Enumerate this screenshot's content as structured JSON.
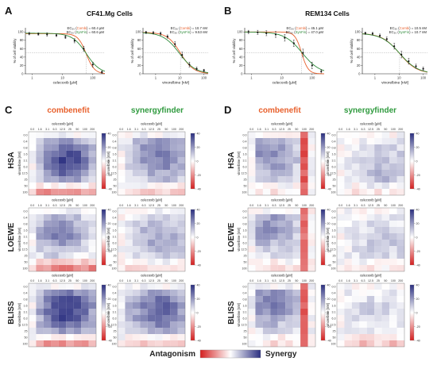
{
  "panels": {
    "A": {
      "letter": "A",
      "title": "CF41.Mg Cells"
    },
    "B": {
      "letter": "B",
      "title": "REM134 Cells"
    },
    "C": {
      "letter": "C"
    },
    "D": {
      "letter": "D"
    }
  },
  "column_titles": {
    "combenefit": "combenefit",
    "synergyfinder": "synergyfinder"
  },
  "row_titles": [
    "HSA",
    "LOEWE",
    "BLISS"
  ],
  "legend": {
    "antagonism": "Antagonism",
    "synergy": "Synergy"
  },
  "colors": {
    "combenefit_fit": "#e8602c",
    "synergyfinder_fit": "#2e8b3a",
    "synergy": "#2b2f80",
    "antagonism": "#d42020",
    "neutral": "#ffffff",
    "combenefit_title": "#e8602c",
    "synergyfinder_title": "#2f9a3e"
  },
  "chart_data": [
    {
      "id": "A-celecoxib",
      "type": "line",
      "xlabel": "celecoxib [µM]",
      "ylabel": "% of cell viability",
      "x_scale": "log",
      "x_ticks": [
        "1",
        "10",
        "100"
      ],
      "y_ticks": [
        "0",
        "20",
        "40",
        "60",
        "80",
        "100"
      ],
      "ylim": [
        0,
        110
      ],
      "legend": [
        {
          "prefix": "EC₅₀ (",
          "method": "Combi",
          "suffix": ") = 60.4 µM",
          "method_color": "#e8602c"
        },
        {
          "prefix": "EC₅₀ (",
          "method": "SynFin",
          "suffix": ") = 60.6 µM",
          "method_color": "#2e8b3a"
        }
      ],
      "series": [
        {
          "name": "Combi",
          "color": "#e8602c",
          "ec50": 60.4,
          "hill": 3.2,
          "top": 96
        },
        {
          "name": "SynFin",
          "color": "#2e8b3a",
          "ec50": 60.6,
          "hill": 1.9,
          "top": 97
        }
      ],
      "points": [
        {
          "x": 0.8,
          "y": 96,
          "err": 3
        },
        {
          "x": 1.6,
          "y": 95,
          "err": 3
        },
        {
          "x": 3.1,
          "y": 94,
          "err": 4
        },
        {
          "x": 6.3,
          "y": 92,
          "err": 3
        },
        {
          "x": 12.5,
          "y": 88,
          "err": 4
        },
        {
          "x": 25,
          "y": 79,
          "err": 5
        },
        {
          "x": 50,
          "y": 60,
          "err": 6
        },
        {
          "x": 100,
          "y": 22,
          "err": 6
        },
        {
          "x": 200,
          "y": 4,
          "err": 3
        }
      ],
      "x_range": [
        0.6,
        250
      ]
    },
    {
      "id": "A-vinorelbine",
      "type": "line",
      "xlabel": "vinorelbine [nM]",
      "ylabel": "% of cell viability",
      "x_scale": "log",
      "x_ticks": [
        "1",
        "10",
        "100"
      ],
      "y_ticks": [
        "0",
        "20",
        "40",
        "60",
        "80",
        "100"
      ],
      "ylim": [
        0,
        110
      ],
      "legend": [
        {
          "prefix": "EC₅₀ (",
          "method": "Combi",
          "suffix": ") = 10.7 nM",
          "method_color": "#e8602c"
        },
        {
          "prefix": "EC₅₀ (",
          "method": "SynFin",
          "suffix": ") = 9.53 nM",
          "method_color": "#2e8b3a"
        }
      ],
      "series": [
        {
          "name": "Combi",
          "color": "#e8602c",
          "ec50": 10.7,
          "hill": 1.6,
          "top": 99
        },
        {
          "name": "SynFin",
          "color": "#2e8b3a",
          "ec50": 9.53,
          "hill": 1.3,
          "top": 99
        }
      ],
      "points": [
        {
          "x": 0.4,
          "y": 99,
          "err": 3
        },
        {
          "x": 0.8,
          "y": 98,
          "err": 3
        },
        {
          "x": 1.6,
          "y": 96,
          "err": 4
        },
        {
          "x": 3.1,
          "y": 89,
          "err": 4
        },
        {
          "x": 6.3,
          "y": 71,
          "err": 6
        },
        {
          "x": 12.5,
          "y": 45,
          "err": 7
        },
        {
          "x": 25,
          "y": 22,
          "err": 6
        },
        {
          "x": 50,
          "y": 12,
          "err": 4
        },
        {
          "x": 100,
          "y": 8,
          "err": 3
        }
      ],
      "x_range": [
        0.3,
        150
      ]
    },
    {
      "id": "B-celecoxib",
      "type": "line",
      "xlabel": "celecoxib [µM]",
      "ylabel": "% of cell viability",
      "x_scale": "log",
      "x_ticks": [
        "1",
        "10",
        "100"
      ],
      "y_ticks": [
        "0",
        "20",
        "40",
        "60",
        "80",
        "100"
      ],
      "ylim": [
        0,
        110
      ],
      "legend": [
        {
          "prefix": "EC₅₀ (",
          "method": "Combi",
          "suffix": ") = 45.1 µM",
          "method_color": "#e8602c"
        },
        {
          "prefix": "EC₅₀ (",
          "method": "SynFin",
          "suffix": ") = 47.0 µM",
          "method_color": "#2e8b3a"
        }
      ],
      "series": [
        {
          "name": "Combi",
          "color": "#e8602c",
          "ec50": 45.1,
          "hill": 4.0,
          "top": 100
        },
        {
          "name": "SynFin",
          "color": "#2e8b3a",
          "ec50": 47.0,
          "hill": 1.5,
          "top": 100
        }
      ],
      "points": [
        {
          "x": 0.8,
          "y": 100,
          "err": 4
        },
        {
          "x": 1.6,
          "y": 99,
          "err": 5
        },
        {
          "x": 3.1,
          "y": 97,
          "err": 6
        },
        {
          "x": 6.3,
          "y": 94,
          "err": 7
        },
        {
          "x": 12.5,
          "y": 86,
          "err": 8
        },
        {
          "x": 25,
          "y": 73,
          "err": 8
        },
        {
          "x": 50,
          "y": 50,
          "err": 9
        },
        {
          "x": 100,
          "y": 20,
          "err": 8
        },
        {
          "x": 200,
          "y": 6,
          "err": 4
        }
      ],
      "x_range": [
        0.6,
        250
      ]
    },
    {
      "id": "B-vinorelbine",
      "type": "line",
      "xlabel": "vinorelbine [nM]",
      "ylabel": "% of cell viability",
      "x_scale": "log",
      "x_ticks": [
        "1",
        "10",
        "100"
      ],
      "y_ticks": [
        "0",
        "20",
        "40",
        "60",
        "80",
        "100"
      ],
      "ylim": [
        0,
        110
      ],
      "legend": [
        {
          "prefix": "EC₅₀ (",
          "method": "Combi",
          "suffix": ") = 10.5 nM",
          "method_color": "#e8602c"
        },
        {
          "prefix": "EC₅₀ (",
          "method": "SynFin",
          "suffix": ") = 10.7 nM",
          "method_color": "#2e8b3a"
        }
      ],
      "series": [
        {
          "name": "Combi",
          "color": "#e8602c",
          "ec50": 10.5,
          "hill": 1.2,
          "top": 97
        },
        {
          "name": "SynFin",
          "color": "#2e8b3a",
          "ec50": 10.7,
          "hill": 1.15,
          "top": 97
        }
      ],
      "points": [
        {
          "x": 0.4,
          "y": 97,
          "err": 3
        },
        {
          "x": 0.8,
          "y": 96,
          "err": 3
        },
        {
          "x": 1.6,
          "y": 91,
          "err": 4
        },
        {
          "x": 3.1,
          "y": 83,
          "err": 5
        },
        {
          "x": 6.3,
          "y": 66,
          "err": 7
        },
        {
          "x": 12.5,
          "y": 46,
          "err": 8
        },
        {
          "x": 25,
          "y": 30,
          "err": 7
        },
        {
          "x": 50,
          "y": 18,
          "err": 5
        },
        {
          "x": 100,
          "y": 12,
          "err": 4
        }
      ],
      "x_range": [
        0.3,
        150
      ]
    },
    {
      "id": "heatmaps",
      "type": "heatmap",
      "title": "celecoxib [µM]",
      "xlabel": "celecoxib [µM]",
      "ylabel": "vinorelbine [nM]",
      "x_labels": [
        "0.0",
        "1.6",
        "3.1",
        "6.3",
        "12.5",
        "25",
        "50",
        "100",
        "200"
      ],
      "y_labels": [
        "0.0",
        "0.4",
        "0.8",
        "1.6",
        "3.1",
        "6.3",
        "12.5",
        "25",
        "50",
        "100"
      ],
      "colorbar_ticks": [
        "40",
        "20",
        "0",
        "-20",
        "-40"
      ],
      "colorbar_range": [
        -40,
        40
      ],
      "panels": [
        {
          "panel": "C",
          "method": "combenefit",
          "model": "HSA",
          "hotspot": [
            4.6,
            4.0
          ],
          "spread": 2.8,
          "peak": 36,
          "bottom_neg": -24,
          "right_neg": 0,
          "seed": 11
        },
        {
          "panel": "C",
          "method": "synergyfinder",
          "model": "HSA",
          "hotspot": [
            5.2,
            3.3
          ],
          "spread": 3.1,
          "peak": 26,
          "bottom_neg": -10,
          "right_neg": 0,
          "seed": 12
        },
        {
          "panel": "D",
          "method": "combenefit",
          "model": "HSA",
          "hotspot": [
            2.5,
            3.0
          ],
          "spread": 3.0,
          "peak": 22,
          "bottom_neg": -4,
          "right_neg": -32,
          "seed": 13
        },
        {
          "panel": "D",
          "method": "synergyfinder",
          "model": "HSA",
          "hotspot": [
            5.8,
            5.2
          ],
          "spread": 3.0,
          "peak": 14,
          "bottom_neg": -4,
          "right_neg": 0,
          "seed": 14
        },
        {
          "panel": "C",
          "method": "combenefit",
          "model": "LOEWE",
          "hotspot": [
            3.6,
            3.3
          ],
          "spread": 2.5,
          "peak": 26,
          "bottom_neg": -24,
          "right_neg": 0,
          "seed": 21
        },
        {
          "panel": "C",
          "method": "synergyfinder",
          "model": "LOEWE",
          "hotspot": [
            5.1,
            4.0
          ],
          "spread": 3.0,
          "peak": 18,
          "bottom_neg": -8,
          "right_neg": 0,
          "seed": 22
        },
        {
          "panel": "D",
          "method": "combenefit",
          "model": "LOEWE",
          "hotspot": [
            2.4,
            2.6
          ],
          "spread": 3.0,
          "peak": 20,
          "bottom_neg": -6,
          "right_neg": -30,
          "seed": 23
        },
        {
          "panel": "D",
          "method": "synergyfinder",
          "model": "LOEWE",
          "hotspot": [
            5.6,
            5.0
          ],
          "spread": 3.0,
          "peak": 10,
          "bottom_neg": -3,
          "right_neg": 0,
          "seed": 24
        },
        {
          "panel": "C",
          "method": "combenefit",
          "model": "BLISS",
          "hotspot": [
            4.6,
            3.6
          ],
          "spread": 2.9,
          "peak": 38,
          "bottom_neg": -22,
          "right_neg": 0,
          "seed": 31
        },
        {
          "panel": "C",
          "method": "synergyfinder",
          "model": "BLISS",
          "hotspot": [
            5.1,
            3.8
          ],
          "spread": 3.1,
          "peak": 30,
          "bottom_neg": -12,
          "right_neg": 0,
          "seed": 32
        },
        {
          "panel": "D",
          "method": "combenefit",
          "model": "BLISS",
          "hotspot": [
            2.6,
            2.6
          ],
          "spread": 3.0,
          "peak": 24,
          "bottom_neg": -6,
          "right_neg": -32,
          "seed": 33
        },
        {
          "panel": "D",
          "method": "synergyfinder",
          "model": "BLISS",
          "hotspot": [
            4.5,
            4.0
          ],
          "spread": 2.8,
          "peak": 8,
          "bottom_neg": -12,
          "right_neg": 0,
          "seed": 34
        }
      ]
    }
  ]
}
